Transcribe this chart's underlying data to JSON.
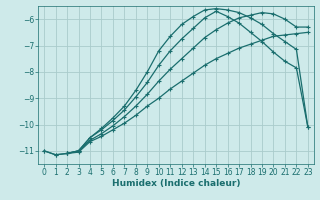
{
  "xlabel": "Humidex (Indice chaleur)",
  "bg_color": "#ceeaea",
  "grid_color": "#aacccc",
  "line_color": "#1a6e6e",
  "xlim": [
    -0.5,
    23.5
  ],
  "ylim": [
    -11.5,
    -5.5
  ],
  "yticks": [
    -11,
    -10,
    -9,
    -8,
    -7,
    -6
  ],
  "xticks": [
    0,
    1,
    2,
    3,
    4,
    5,
    6,
    7,
    8,
    9,
    10,
    11,
    12,
    13,
    14,
    15,
    16,
    17,
    18,
    19,
    20,
    21,
    22,
    23
  ],
  "curve1_x": [
    0,
    1,
    2,
    3,
    4,
    5,
    6,
    7,
    8,
    9,
    10,
    11,
    12,
    13,
    14,
    15,
    16,
    17,
    18,
    19,
    20,
    21,
    22,
    23
  ],
  "curve1_y": [
    -11.0,
    -11.15,
    -11.1,
    -11.05,
    -10.65,
    -10.45,
    -10.2,
    -9.95,
    -9.65,
    -9.3,
    -9.0,
    -8.65,
    -8.35,
    -8.05,
    -7.75,
    -7.5,
    -7.3,
    -7.1,
    -6.95,
    -6.8,
    -6.65,
    -6.6,
    -6.55,
    -6.5
  ],
  "curve2_x": [
    0,
    1,
    2,
    3,
    4,
    5,
    6,
    7,
    8,
    9,
    10,
    11,
    12,
    13,
    14,
    15,
    16,
    17,
    18,
    19,
    20,
    21,
    22,
    23
  ],
  "curve2_y": [
    -11.0,
    -11.15,
    -11.1,
    -11.0,
    -10.6,
    -10.35,
    -10.05,
    -9.7,
    -9.3,
    -8.85,
    -8.35,
    -7.9,
    -7.5,
    -7.1,
    -6.7,
    -6.4,
    -6.15,
    -5.95,
    -5.85,
    -5.75,
    -5.8,
    -6.0,
    -6.3,
    -6.3
  ],
  "curve3_x": [
    2,
    3,
    4,
    5,
    6,
    7,
    8,
    9,
    10,
    11,
    12,
    13,
    14,
    15,
    16,
    17,
    18,
    19,
    20,
    21,
    22,
    23
  ],
  "curve3_y": [
    -11.1,
    -11.0,
    -10.5,
    -10.2,
    -9.85,
    -9.45,
    -8.95,
    -8.4,
    -7.75,
    -7.2,
    -6.75,
    -6.35,
    -5.95,
    -5.7,
    -5.9,
    -6.15,
    -6.5,
    -6.85,
    -7.25,
    -7.6,
    -7.85,
    -10.1
  ],
  "curve4_x": [
    2,
    3,
    4,
    5,
    6,
    7,
    8,
    9,
    10,
    11,
    12,
    13,
    14,
    15,
    16,
    17,
    18,
    19,
    20,
    21,
    22,
    23
  ],
  "curve4_y": [
    -11.1,
    -11.0,
    -10.5,
    -10.15,
    -9.75,
    -9.3,
    -8.7,
    -8.0,
    -7.2,
    -6.65,
    -6.2,
    -5.9,
    -5.65,
    -5.6,
    -5.65,
    -5.75,
    -5.95,
    -6.2,
    -6.55,
    -6.85,
    -7.15,
    -10.1
  ]
}
